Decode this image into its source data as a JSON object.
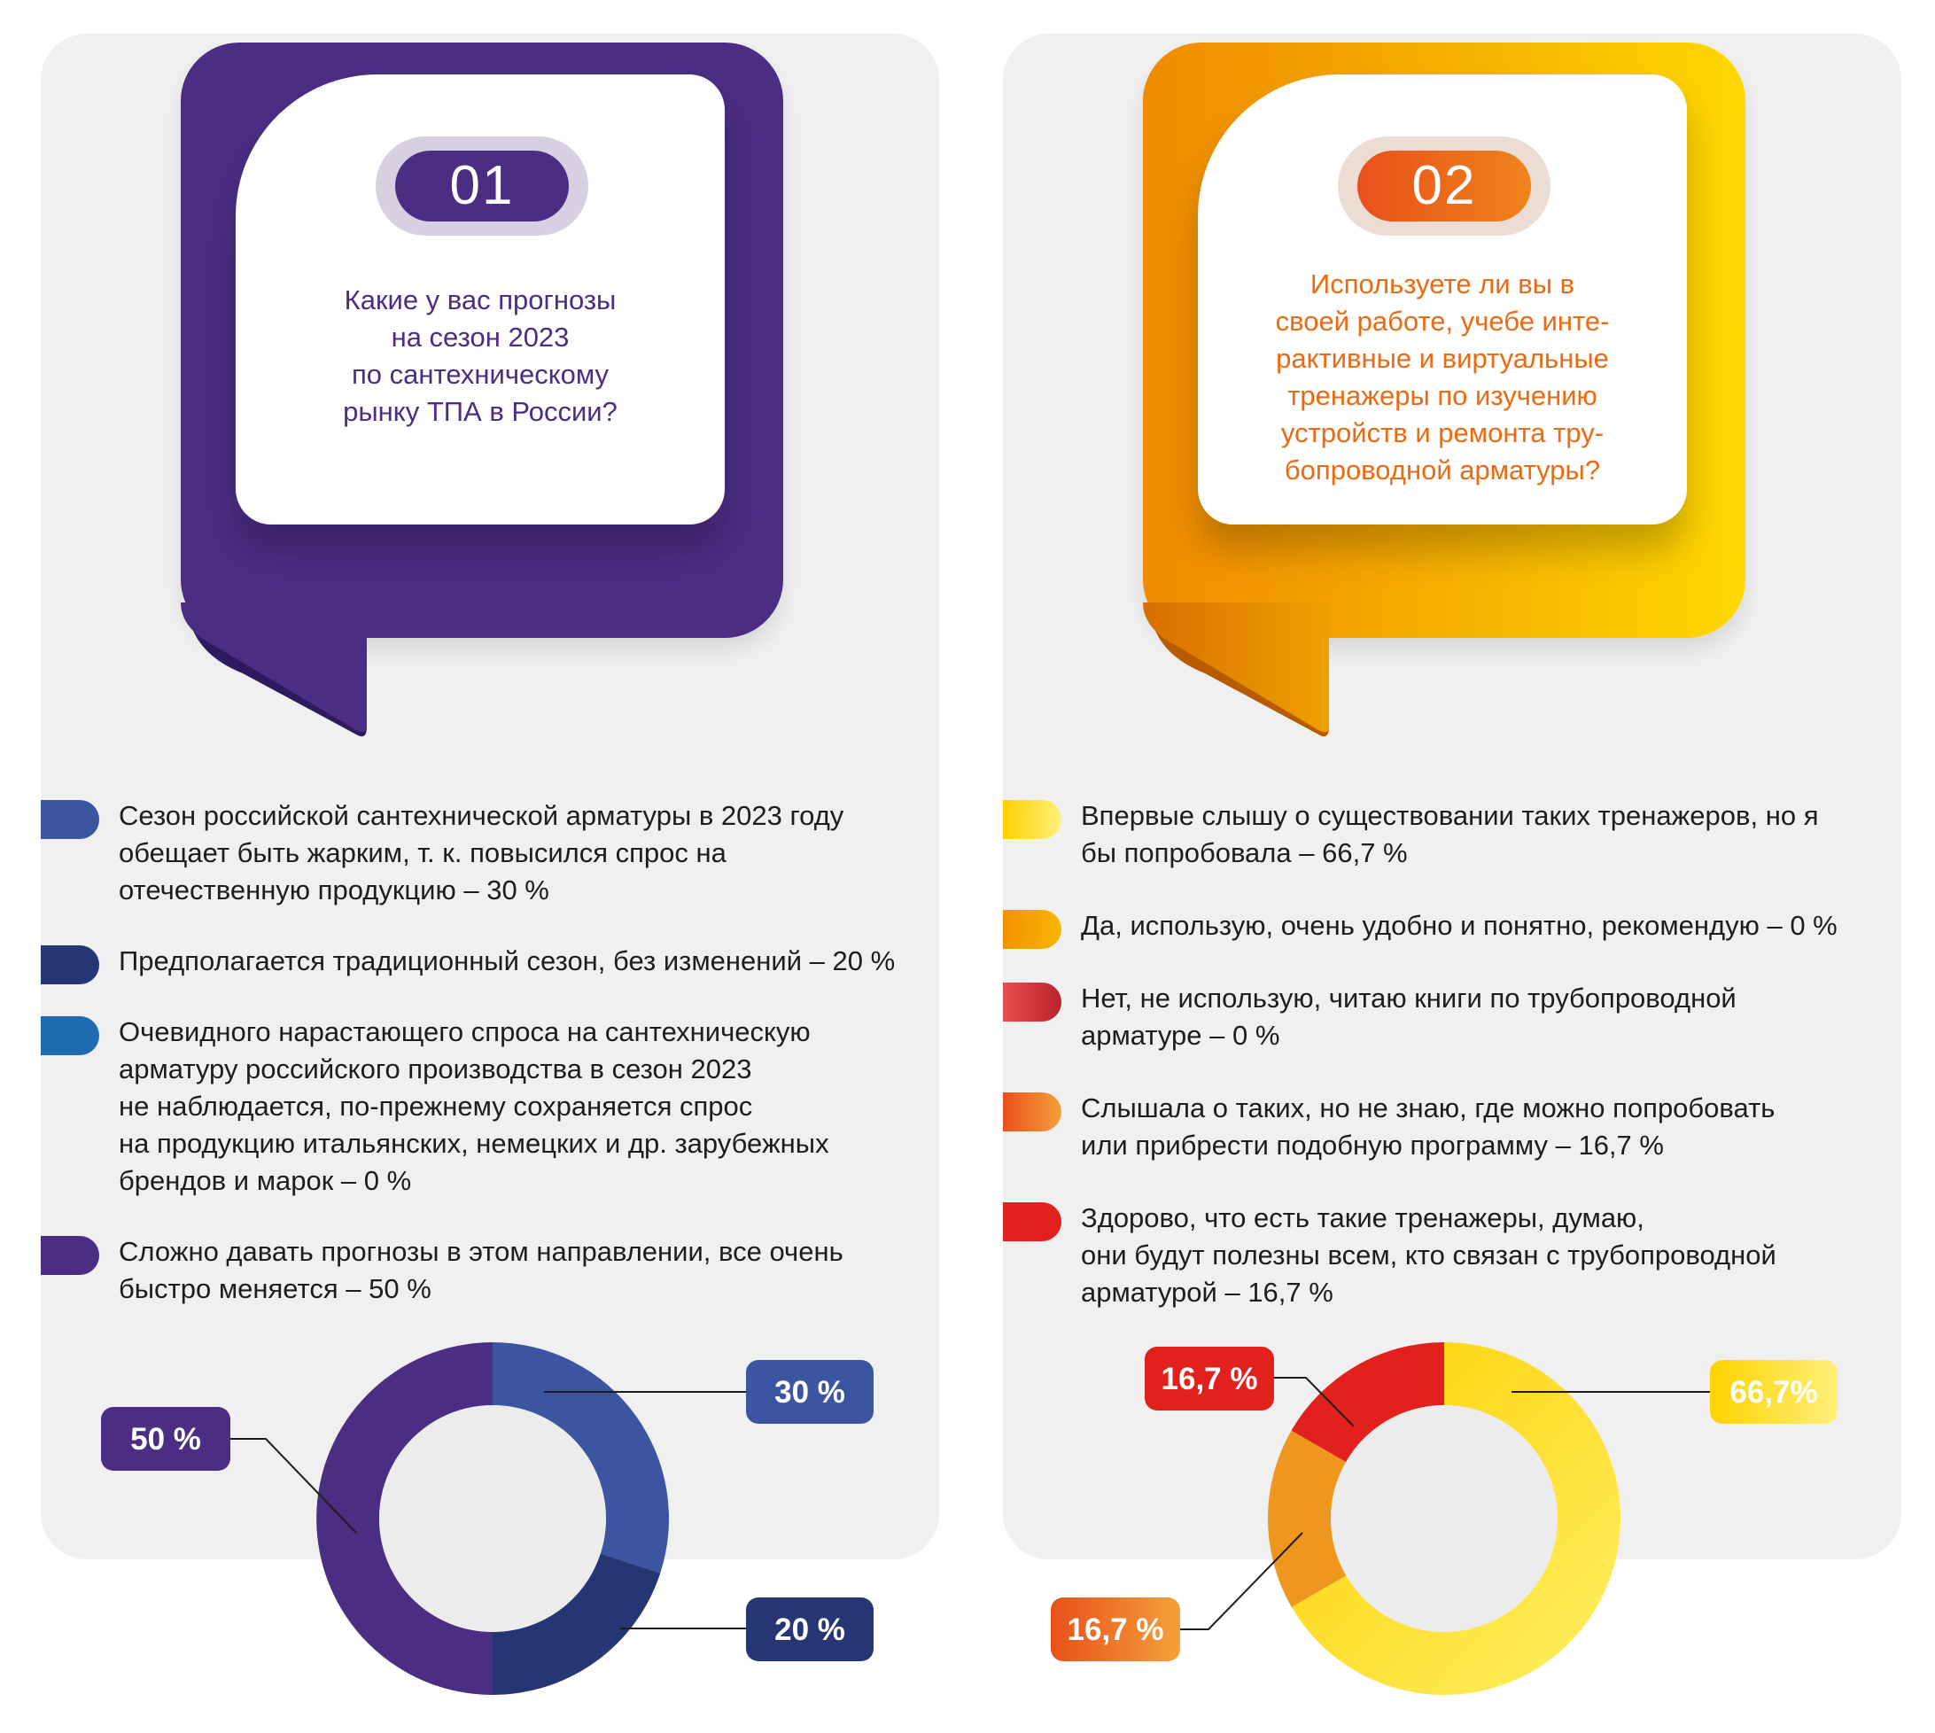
{
  "colors": {
    "purple": "#4b2d84",
    "blue": "#3b55a0",
    "navy": "#263574",
    "mid_blue": "#1f6cb3",
    "yellow": "#fdd000",
    "orange": "#f7a600",
    "dark_red": "#c8282e",
    "orange_red": "#ee7d1e",
    "red": "#e2211c",
    "panel_bg": "#f0f0f0"
  },
  "card1": {
    "number": "01",
    "question_lines": [
      "Какие у вас прогнозы",
      "на сезон 2023",
      "по сантехническому",
      "рынку ТПА в России?"
    ],
    "legend": [
      {
        "lines": [
          "Сезон российской сантехнической арматуры в 2023 году",
          "обещает быть жарким, т. к. повысился спрос на",
          "отечественную продукцию – 30 %"
        ]
      },
      {
        "lines": [
          "Предполагается традиционный сезон, без изменений – 20 %"
        ]
      },
      {
        "lines": [
          "Очевидного нарастающего спроса на сантехническую",
          "арматуру российского производства в сезон 2023",
          "не наблюдается, по-прежнему сохраняется спрос",
          "на продукцию итальянских, немецких и др. зарубежных",
          "брендов и марок – 0 %"
        ]
      },
      {
        "lines": [
          "Сложно давать прогнозы в этом направлении, все очень",
          "быстро меняется – 50 %"
        ]
      }
    ]
  },
  "card2": {
    "number": "02",
    "question_lines": [
      "Используете ли вы в",
      "своей работе, учебе инте-",
      "рактивные и виртуальные",
      "тренажеры по изучению",
      "устройств и ремонта тру-",
      "бопроводной арматуры?"
    ],
    "legend": [
      {
        "lines": [
          "Впервые слышу о существовании таких тренажеров, но я",
          "бы попробовала – 66,7 %"
        ]
      },
      {
        "lines": [
          "Да, использую, очень удобно и понятно, рекомендую – 0 %"
        ]
      },
      {
        "lines": [
          "Нет, не использую, читаю книги по трубопроводной",
          "арматуре – 0 %"
        ]
      },
      {
        "lines": [
          "Слышала о таких, но не знаю, где можно попробовать",
          "или прибрести подобную программу – 16,7 %"
        ]
      },
      {
        "lines": [
          "Здорово, что есть такие тренажеры, думаю,",
          "они будут полезны всем, кто связан с трубопроводной",
          "арматурой – 16,7 %"
        ]
      }
    ]
  },
  "chart_data": [
    {
      "type": "pie",
      "variant": "donut",
      "slices": [
        {
          "value": 30,
          "label": "30 %",
          "color": "#3b55a0"
        },
        {
          "value": 20,
          "label": "20 %",
          "color": "#263574"
        },
        {
          "value": 50,
          "label": "50 %",
          "color": "#4b2d84"
        }
      ]
    },
    {
      "type": "pie",
      "variant": "donut",
      "slices": [
        {
          "value": 66.7,
          "label": "66,7%",
          "color": "#fdd000"
        },
        {
          "value": 16.7,
          "label": "16,7 %",
          "color": "#ee961e"
        },
        {
          "value": 16.7,
          "label": "16,7 %",
          "color": "#e2211c"
        }
      ]
    }
  ]
}
